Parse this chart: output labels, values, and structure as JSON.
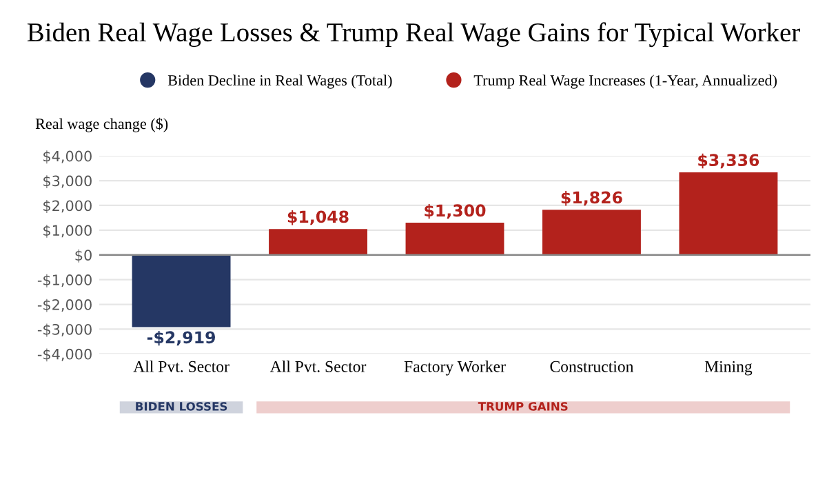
{
  "chart_data": {
    "type": "bar",
    "title": "Biden Real Wage Losses & Trump Real Wage Gains for Typical Worker",
    "ylabel": "Real wage change ($)",
    "categories": [
      "All Pvt. Sector",
      "All Pvt. Sector",
      "Factory Worker",
      "Construction",
      "Mining"
    ],
    "series": [
      {
        "name": "Biden Decline in Real Wages (Total)",
        "color": "#253764",
        "values": [
          -2919,
          null,
          null,
          null,
          null
        ],
        "value_labels": [
          "-$2,919",
          null,
          null,
          null,
          null
        ]
      },
      {
        "name": "Trump Real Wage Increases (1-Year, Annualized)",
        "color": "#b3221c",
        "values": [
          null,
          1048,
          1300,
          1826,
          3336
        ],
        "value_labels": [
          null,
          "$1,048",
          "$1,300",
          "$1,826",
          "$3,336"
        ]
      }
    ],
    "ylim": [
      -4000,
      4000
    ],
    "yticks": [
      {
        "value": -4000,
        "label": "-$4,000"
      },
      {
        "value": -3000,
        "label": "-$3,000"
      },
      {
        "value": -2000,
        "label": "-$2,000"
      },
      {
        "value": -1000,
        "label": "-$1,000"
      },
      {
        "value": 0,
        "label": "$0"
      },
      {
        "value": 1000,
        "label": "$1,000"
      },
      {
        "value": 2000,
        "label": "$2,000"
      },
      {
        "value": 3000,
        "label": "$3,000"
      },
      {
        "value": 4000,
        "label": "$4,000"
      }
    ],
    "grid": "y",
    "legend": "top",
    "annotations": [
      "BIDEN LOSSES",
      "TRUMP GAINS"
    ]
  }
}
